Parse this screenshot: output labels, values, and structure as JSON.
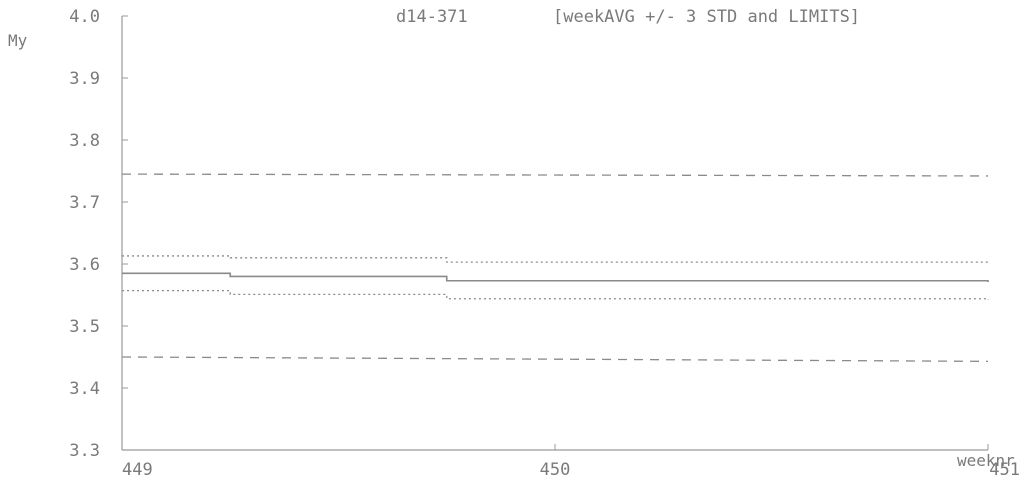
{
  "chart_data": {
    "type": "line",
    "title": "d14-371",
    "subtitle": "[weekAVG +/- 3 STD and LIMITS]",
    "ylabel": "My",
    "xlabel": "weeknr",
    "ylim": [
      3.3,
      4.0
    ],
    "xlim": [
      449,
      451
    ],
    "y_ticks": [
      {
        "value": 4.0,
        "label": "4.0"
      },
      {
        "value": 3.9,
        "label": "3.9"
      },
      {
        "value": 3.8,
        "label": "3.8"
      },
      {
        "value": 3.7,
        "label": "3.7"
      },
      {
        "value": 3.6,
        "label": "3.6"
      },
      {
        "value": 3.5,
        "label": "3.5"
      },
      {
        "value": 3.4,
        "label": "3.4"
      },
      {
        "value": 3.3,
        "label": "3.3"
      }
    ],
    "x_ticks": [
      {
        "value": 449,
        "label": "449"
      },
      {
        "value": 450,
        "label": "450"
      },
      {
        "value": 451,
        "label": "451"
      }
    ],
    "grid": false,
    "series": [
      {
        "style": "dashed",
        "points": [
          [
            449,
            3.745
          ],
          [
            451,
            3.742
          ]
        ]
      },
      {
        "style": "dashed",
        "points": [
          [
            449,
            3.45
          ],
          [
            451,
            3.443
          ]
        ]
      },
      {
        "style": "step-solid",
        "points": [
          [
            449,
            3.585
          ],
          [
            449.25,
            3.58
          ],
          [
            449.75,
            3.573
          ],
          [
            451,
            3.571
          ]
        ]
      },
      {
        "style": "step-dotted",
        "points": [
          [
            449,
            3.613
          ],
          [
            449.25,
            3.61
          ],
          [
            449.75,
            3.603
          ],
          [
            451,
            3.601
          ]
        ]
      },
      {
        "style": "step-dotted",
        "points": [
          [
            449,
            3.557
          ],
          [
            449.25,
            3.551
          ],
          [
            449.75,
            3.544
          ],
          [
            451,
            3.542
          ]
        ]
      }
    ],
    "colors": {
      "axis": "#9a9a9a",
      "line": "#8a8a8a",
      "text": "#7a7a7a"
    }
  }
}
